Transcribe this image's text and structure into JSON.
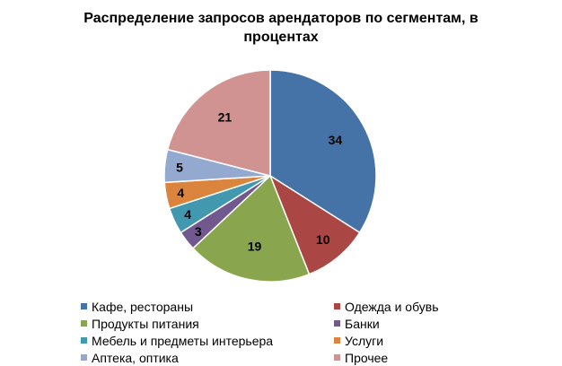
{
  "chart_data": {
    "type": "pie",
    "title": "Распределение запросов арендаторов по сегментам, в процентах",
    "slices": [
      {
        "name": "Кафе, рестораны",
        "value": 34,
        "label": "34",
        "color": "#4572A7"
      },
      {
        "name": "Одежда и обувь",
        "value": 10,
        "label": "10",
        "color": "#AA4643"
      },
      {
        "name": "Продукты питания",
        "value": 19,
        "label": "19",
        "color": "#89A54E"
      },
      {
        "name": "Банки",
        "value": 3,
        "label": "3",
        "color": "#71588F"
      },
      {
        "name": "Мебель и предметы интерьера",
        "value": 4,
        "label": "4",
        "color": "#4198AF"
      },
      {
        "name": "Услуги",
        "value": 4,
        "label": "4",
        "color": "#DB843D"
      },
      {
        "name": "Аптека, оптика",
        "value": 5,
        "label": "5",
        "color": "#93A9CF"
      },
      {
        "name": "Прочее",
        "value": 21,
        "label": "21",
        "color": "#D19392"
      }
    ],
    "legend_position": "bottom"
  }
}
